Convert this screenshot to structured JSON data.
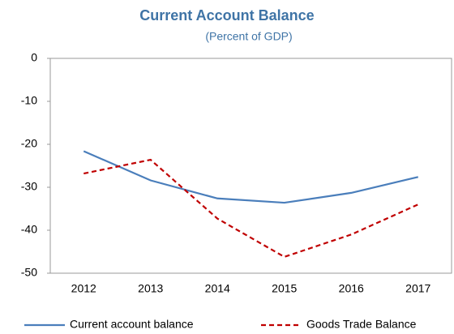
{
  "chart_data": {
    "type": "line",
    "title": "Current Account Balance",
    "subtitle": "(Percent of GDP)",
    "categories": [
      "2012",
      "2013",
      "2014",
      "2015",
      "2016",
      "2017"
    ],
    "series": [
      {
        "name": "Current account balance",
        "color": "#4a7ebb",
        "line_style": "solid",
        "values": [
          -21.6,
          -28.4,
          -32.6,
          -33.6,
          -31.3,
          -27.6
        ]
      },
      {
        "name": "Goods Trade Balance",
        "color": "#c00000",
        "line_style": "dashed",
        "values": [
          -26.8,
          -23.6,
          -37.3,
          -46.2,
          -41.0,
          -34.0
        ]
      }
    ],
    "ylim": [
      -50,
      0
    ],
    "yticks": [
      0,
      -10,
      -20,
      -30,
      -40,
      -50
    ],
    "grid": false,
    "legend": "bottom"
  }
}
